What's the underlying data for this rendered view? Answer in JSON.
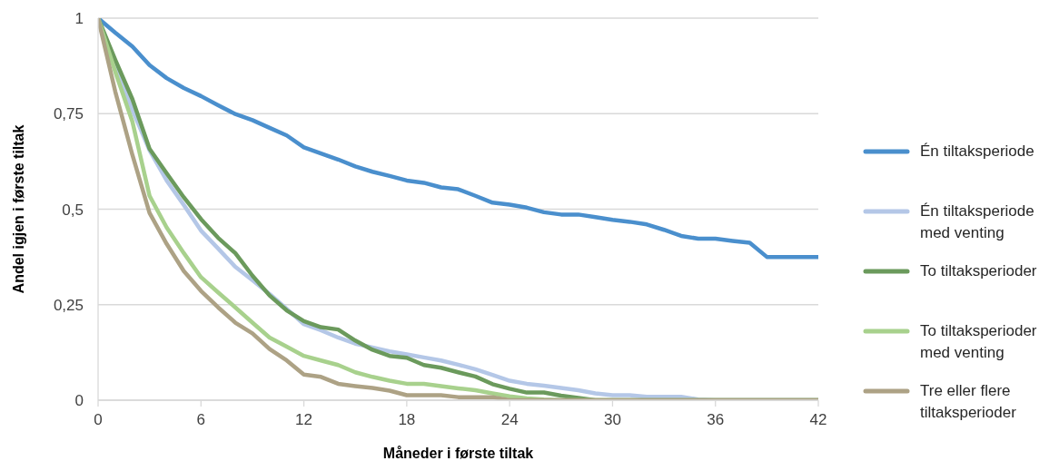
{
  "chart_data": {
    "type": "line",
    "xlabel": "Måneder i første tiltak",
    "ylabel": "Andel igjen i første tiltak",
    "x": [
      0,
      1,
      2,
      3,
      4,
      5,
      6,
      7,
      8,
      9,
      10,
      11,
      12,
      13,
      14,
      15,
      16,
      17,
      18,
      19,
      20,
      21,
      22,
      23,
      24,
      25,
      26,
      27,
      28,
      29,
      30,
      31,
      32,
      33,
      34,
      35,
      36,
      37,
      38,
      39,
      40,
      41,
      42
    ],
    "xlim": [
      0,
      42
    ],
    "xticks": [
      0,
      6,
      12,
      18,
      24,
      30,
      36,
      42
    ],
    "ylim": [
      0,
      1
    ],
    "yticks": [
      0,
      {
        "value": 0.25,
        "label": "0,25"
      },
      {
        "value": 0.5,
        "label": "0,5"
      },
      {
        "value": 0.75,
        "label": "0,75"
      },
      1
    ],
    "grid": "y",
    "legend": "right",
    "line_style": "solid",
    "series": [
      {
        "name": "Én tiltaksperiode",
        "color": "#4a8fcd",
        "values": [
          1,
          0.962,
          0.926,
          0.877,
          0.843,
          0.817,
          0.796,
          0.772,
          0.749,
          0.733,
          0.713,
          0.693,
          0.662,
          0.646,
          0.63,
          0.612,
          0.598,
          0.587,
          0.575,
          0.569,
          0.557,
          0.552,
          0.535,
          0.517,
          0.512,
          0.504,
          0.492,
          0.486,
          0.486,
          0.479,
          0.472,
          0.467,
          0.46,
          0.446,
          0.43,
          0.423,
          0.423,
          0.417,
          0.412,
          0.375,
          0.375,
          0.375,
          0.375
        ]
      },
      {
        "name": "Én tiltaksperiode med venting",
        "color": "#b4c7e7",
        "values": [
          1,
          0.88,
          0.76,
          0.654,
          0.575,
          0.511,
          0.444,
          0.397,
          0.349,
          0.314,
          0.278,
          0.239,
          0.199,
          0.183,
          0.164,
          0.148,
          0.138,
          0.128,
          0.12,
          0.112,
          0.104,
          0.093,
          0.081,
          0.066,
          0.051,
          0.043,
          0.038,
          0.032,
          0.026,
          0.018,
          0.013,
          0.013,
          0.009,
          0.009,
          0.009,
          0.002,
          0,
          0,
          0,
          0,
          0,
          0,
          0
        ]
      },
      {
        "name": "To tiltaksperioder",
        "color": "#6b9a5c",
        "values": [
          1,
          0.891,
          0.788,
          0.658,
          0.594,
          0.531,
          0.474,
          0.425,
          0.385,
          0.326,
          0.274,
          0.235,
          0.207,
          0.191,
          0.185,
          0.156,
          0.132,
          0.116,
          0.111,
          0.092,
          0.085,
          0.073,
          0.062,
          0.042,
          0.03,
          0.02,
          0.02,
          0.012,
          0.006,
          0,
          0,
          0,
          0,
          0,
          0,
          0,
          0,
          0,
          0,
          0,
          0,
          0,
          0
        ]
      },
      {
        "name": "To tiltaksperioder med venting",
        "color": "#a8d18d",
        "values": [
          1,
          0.86,
          0.729,
          0.535,
          0.452,
          0.385,
          0.322,
          0.282,
          0.243,
          0.203,
          0.164,
          0.14,
          0.116,
          0.104,
          0.092,
          0.073,
          0.061,
          0.051,
          0.043,
          0.043,
          0.037,
          0.031,
          0.026,
          0.018,
          0.01,
          0.005,
          0.002,
          0,
          0,
          0,
          0,
          0,
          0,
          0,
          0,
          0,
          0,
          0,
          0,
          0,
          0,
          0,
          0
        ]
      },
      {
        "name": "Tre eller flere tiltaksperioder",
        "color": "#ada285",
        "values": [
          1,
          0.808,
          0.642,
          0.49,
          0.409,
          0.338,
          0.286,
          0.243,
          0.203,
          0.175,
          0.134,
          0.104,
          0.067,
          0.061,
          0.043,
          0.037,
          0.032,
          0.025,
          0.013,
          0.013,
          0.013,
          0.008,
          0.008,
          0.008,
          0,
          0,
          0,
          0,
          0,
          0,
          0,
          0,
          0,
          0,
          0,
          0,
          0,
          0,
          0,
          0,
          0,
          0,
          0
        ]
      }
    ]
  }
}
